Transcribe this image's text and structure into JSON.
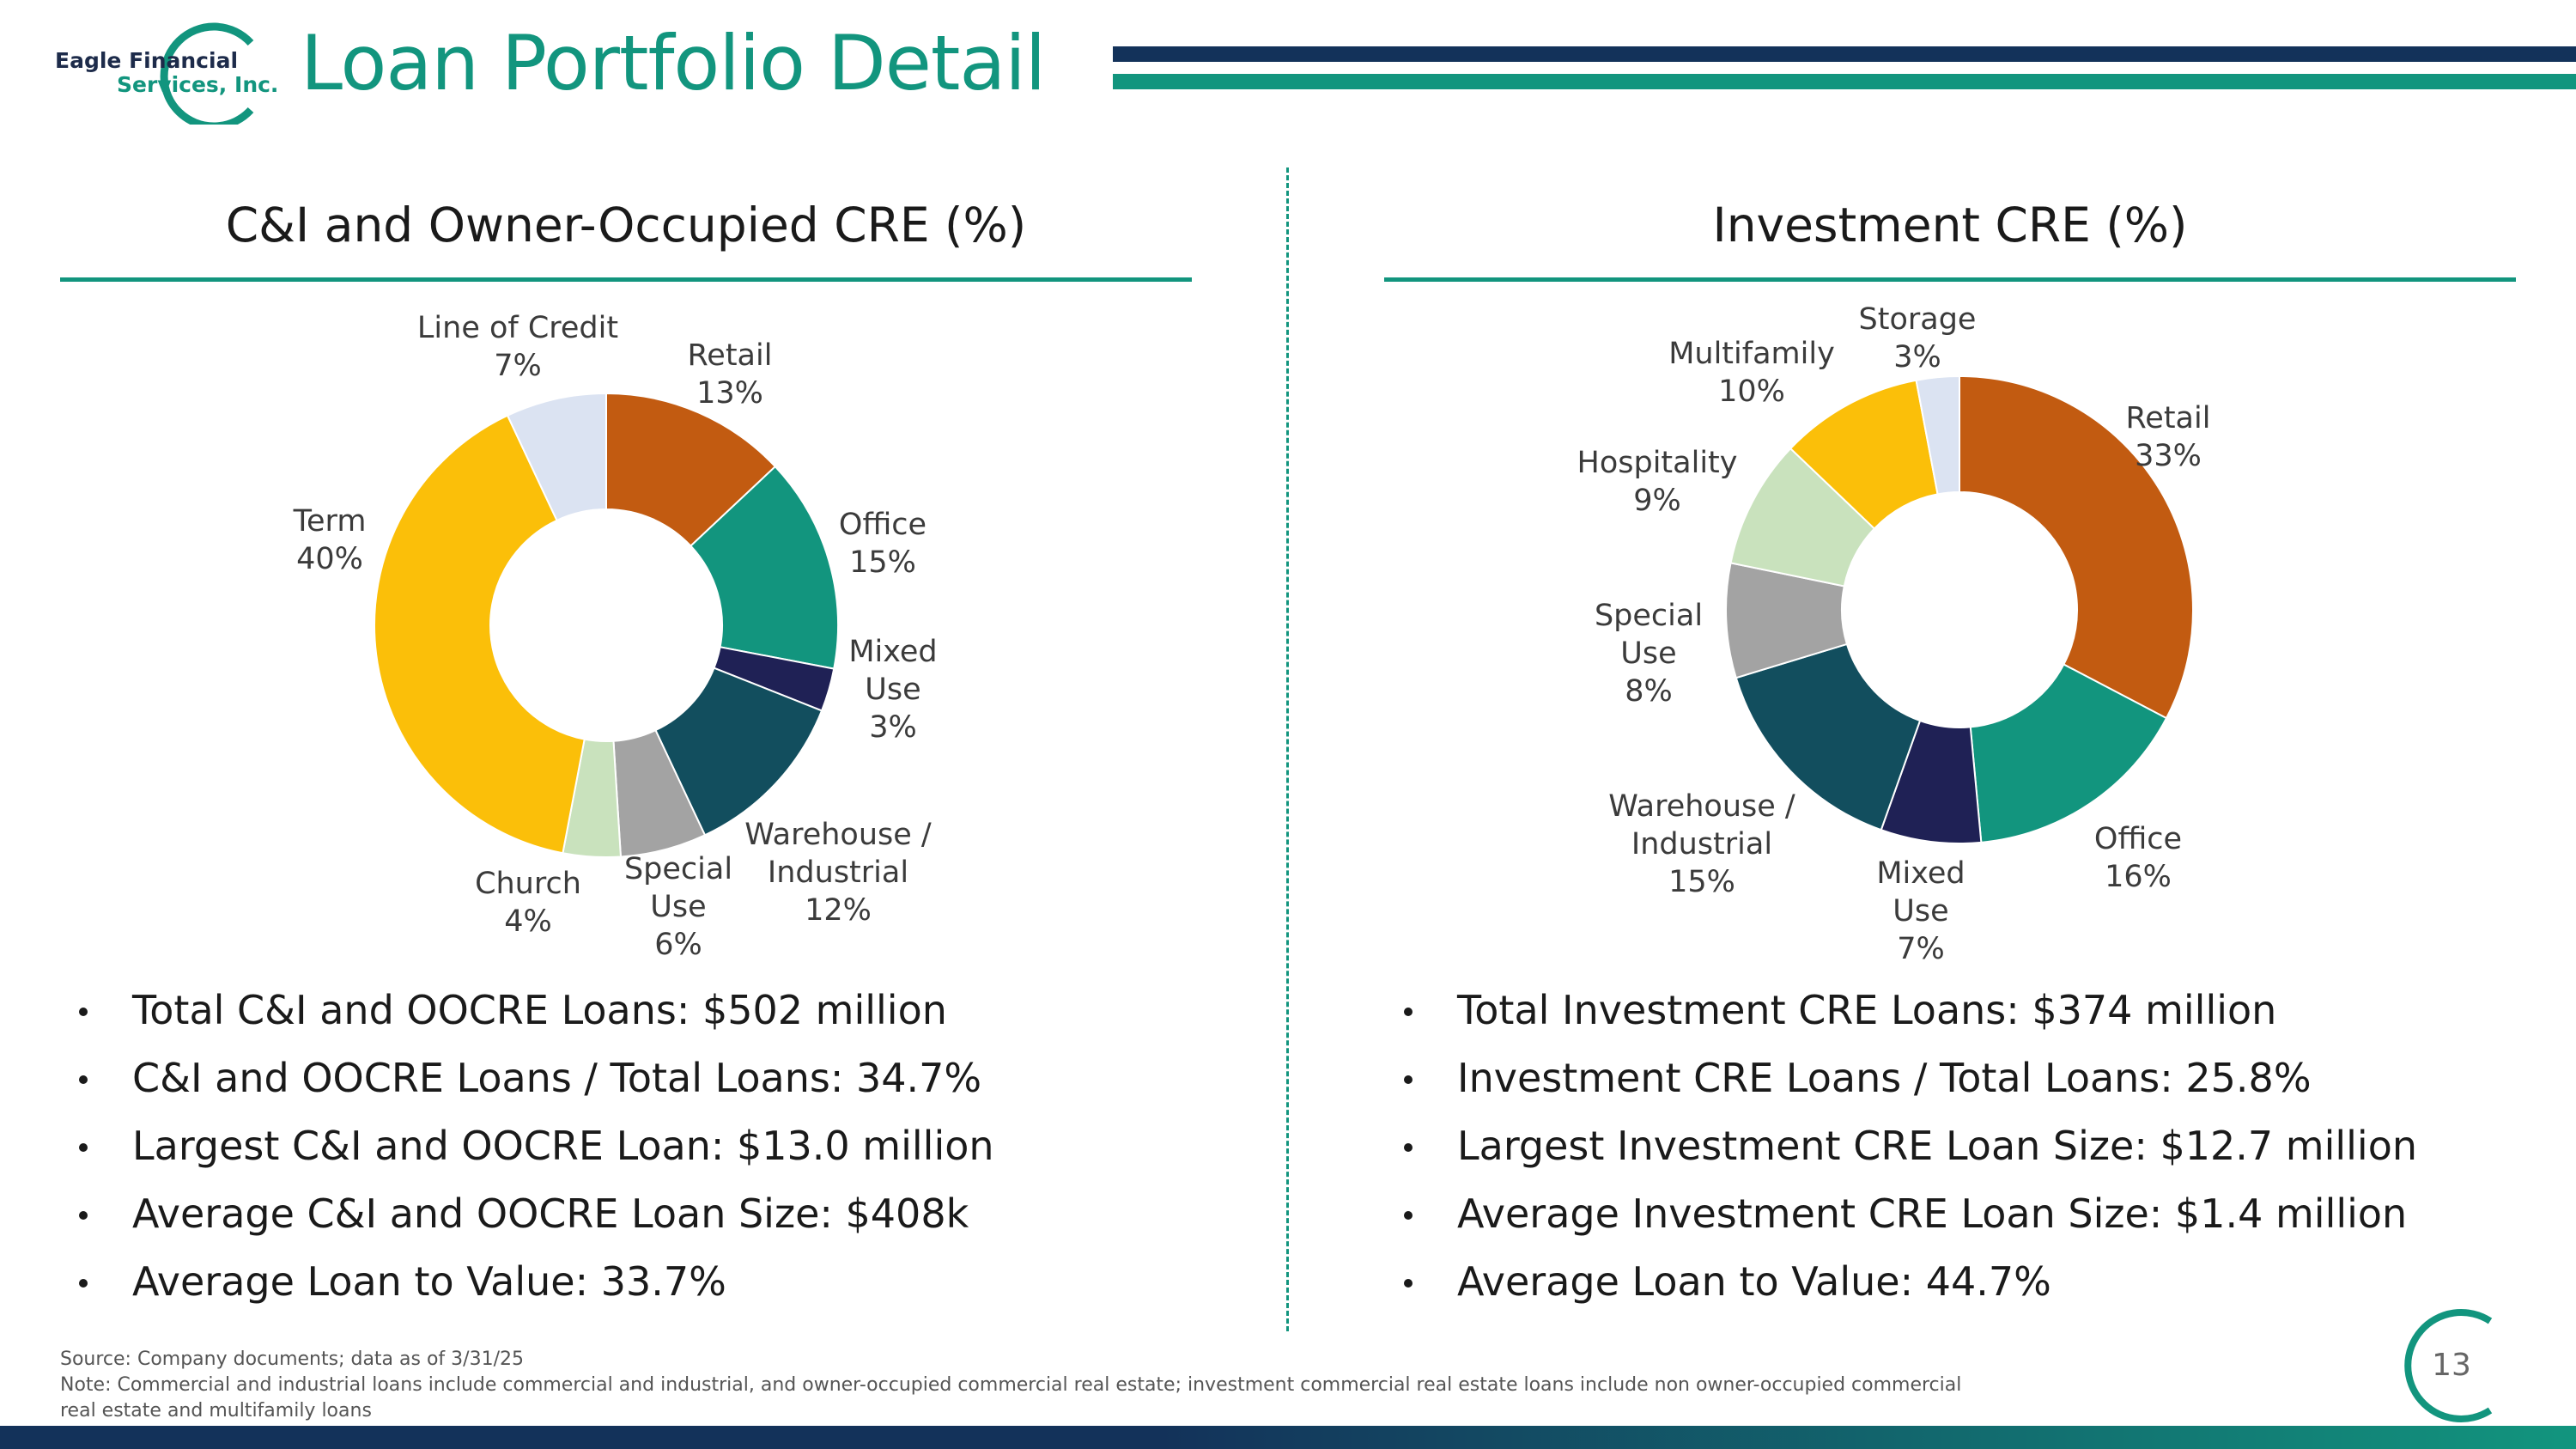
{
  "header": {
    "logo_line1": "Eagle Financial",
    "logo_line2": "Services, Inc.",
    "title": "Loan Portfolio Detail"
  },
  "left": {
    "heading": "C&I and Owner-Occupied CRE (%)",
    "bullets": [
      "Total C&I and OOCRE Loans: $502 million",
      "C&I and OOCRE Loans / Total Loans: 34.7%",
      "Largest C&I and OOCRE Loan: $13.0 million",
      "Average C&I and OOCRE Loan Size: $408k",
      "Average Loan to Value: 33.7%"
    ]
  },
  "right": {
    "heading": "Investment CRE (%)",
    "bullets": [
      "Total Investment CRE Loans: $374 million",
      "Investment CRE Loans / Total Loans: 25.8%",
      "Largest Investment CRE Loan Size: $12.7 million",
      "Average Investment CRE Loan Size: $1.4 million",
      "Average Loan to Value: 44.7%"
    ]
  },
  "chart_data": [
    {
      "type": "pie",
      "title": "C&I and Owner-Occupied CRE (%)",
      "categories": [
        "Retail",
        "Office",
        "Mixed Use",
        "Warehouse / Industrial",
        "Special Use",
        "Church",
        "Term",
        "Line of Credit"
      ],
      "values": [
        13,
        15,
        3,
        12,
        6,
        4,
        40,
        7
      ],
      "value_labels": [
        "13%",
        "15%",
        "3%",
        "12%",
        "6%",
        "4%",
        "40%",
        "7%"
      ],
      "colors": [
        "#c25b11",
        "#12957e",
        "#1f2155",
        "#124e5e",
        "#a3a3a3",
        "#c9e2bd",
        "#fbbf09",
        "#dbe3f2"
      ]
    },
    {
      "type": "pie",
      "title": "Investment CRE (%)",
      "categories": [
        "Retail",
        "Office",
        "Mixed Use",
        "Warehouse / Industrial",
        "Special Use",
        "Hospitality",
        "Multifamily",
        "Storage"
      ],
      "values": [
        33,
        16,
        7,
        15,
        8,
        9,
        10,
        3
      ],
      "value_labels": [
        "33%",
        "16%",
        "7%",
        "15%",
        "8%",
        "9%",
        "10%",
        "3%"
      ],
      "colors": [
        "#c25b11",
        "#12957e",
        "#1f2155",
        "#124e5e",
        "#a3a3a3",
        "#c9e2bd",
        "#fbbf09",
        "#dbe3f2"
      ]
    }
  ],
  "footer": {
    "source": "Source: Company documents; data as of 3/31/25",
    "note_line1": "Note: Commercial and industrial loans include commercial and industrial, and owner-occupied commercial real estate; investment commercial real estate loans include non owner-occupied commercial",
    "note_line2": "real estate and multifamily loans",
    "page_number": "13"
  }
}
